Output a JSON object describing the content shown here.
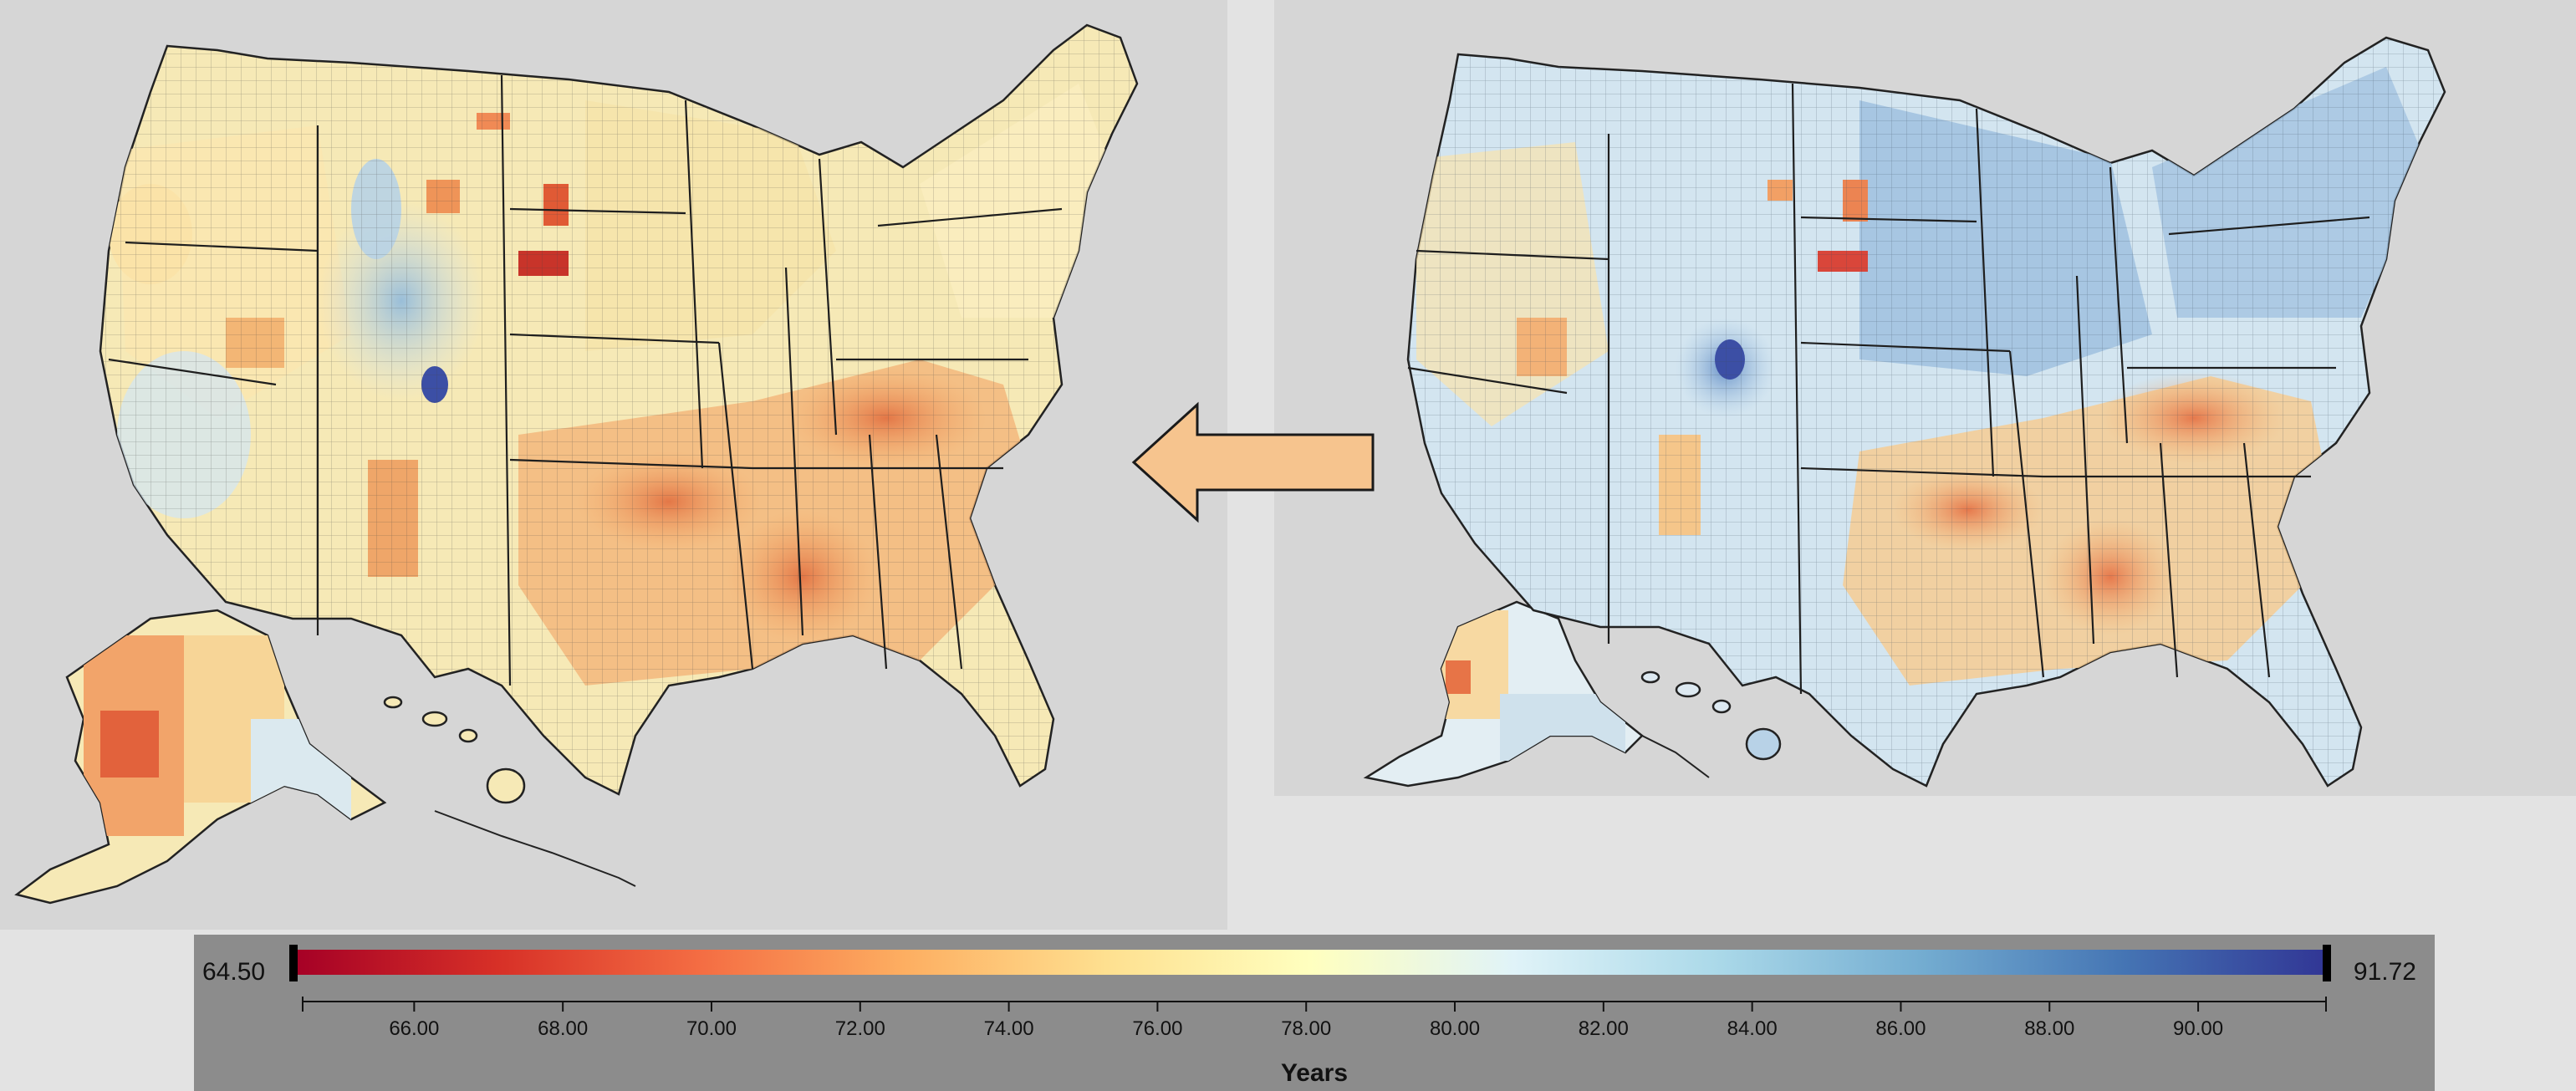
{
  "legend": {
    "min_label": "64.50",
    "max_label": "91.72",
    "title": "Years",
    "range": [
      64.5,
      91.72
    ],
    "ticks": [
      "66.00",
      "68.00",
      "70.00",
      "72.00",
      "74.00",
      "76.00",
      "78.00",
      "80.00",
      "82.00",
      "84.00",
      "86.00",
      "88.00",
      "90.00"
    ],
    "gradient_colors": [
      "#a50026",
      "#d73027",
      "#f46d43",
      "#fdae61",
      "#fee090",
      "#ffffbf",
      "#e0f3f8",
      "#abd9e9",
      "#74add1",
      "#4575b4",
      "#313695"
    ]
  },
  "maps": {
    "left": {
      "tint": "warm"
    },
    "right": {
      "tint": "cool"
    }
  },
  "arrow": {
    "direction": "left",
    "color": "#f6c48e"
  }
}
